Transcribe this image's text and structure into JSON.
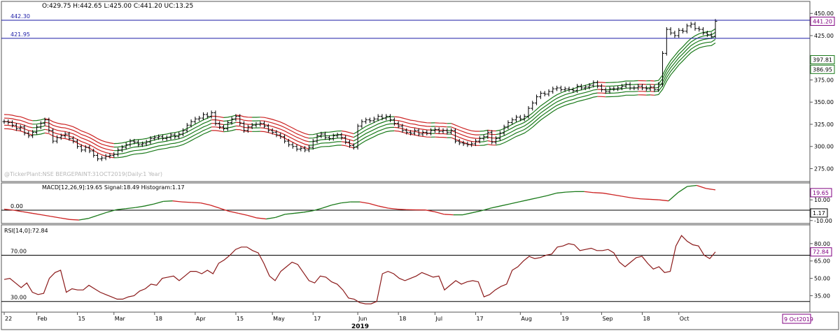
{
  "chart_data": [
    {
      "type": "ohlc",
      "panel": "price",
      "header": "O:429.75  H:442.65  L:425.00  C:441.20  UC:13.25",
      "watermark": "@TickerPlant:NSE BERGEPAINT:31OCT2019(Daily:1 Year)",
      "ylim": [
        262,
        462
      ],
      "ticks": [
        450,
        425,
        400,
        375,
        350,
        325,
        300,
        275
      ],
      "ticks_fmt": [
        "450.00",
        "425.00",
        "400.00",
        "375.00",
        "350.00",
        "325.00",
        "300.00",
        "275.00"
      ],
      "hlines": [
        {
          "label": "442.30",
          "value": 442.3
        },
        {
          "label": "421.95",
          "value": 421.95
        }
      ],
      "last_price": {
        "label": "441.20",
        "value": 441.2
      },
      "ribbon_labels": [
        {
          "label": "397.81",
          "value": 397.81
        },
        {
          "label": "386.95",
          "value": 386.95
        }
      ],
      "closes": [
        328,
        327,
        324,
        320,
        322,
        315,
        312,
        316,
        322,
        326,
        330,
        318,
        306,
        310,
        312,
        314,
        309,
        306,
        300,
        296,
        299,
        295,
        290,
        286,
        287,
        289,
        290,
        291,
        296,
        299,
        302,
        306,
        305,
        302,
        303,
        305,
        309,
        310,
        311,
        309,
        310,
        313,
        311,
        314,
        318,
        324,
        328,
        331,
        332,
        336,
        334,
        338,
        326,
        322,
        320,
        327,
        331,
        334,
        326,
        318,
        322,
        324,
        325,
        326,
        323,
        318,
        316,
        313,
        311,
        306,
        302,
        300,
        297,
        298,
        296,
        299,
        306,
        312,
        314,
        310,
        309,
        312,
        313,
        310,
        305,
        301,
        299,
        323,
        328,
        330,
        329,
        331,
        334,
        332,
        334,
        330,
        326,
        323,
        318,
        316,
        315,
        318,
        314,
        316,
        315,
        318,
        319,
        317,
        318,
        316,
        318,
        306,
        304,
        303,
        302,
        303,
        306,
        309,
        311,
        316,
        305,
        309,
        315,
        322,
        327,
        330,
        333,
        331,
        334,
        343,
        349,
        356,
        360,
        359,
        362,
        365,
        366,
        364,
        365,
        364,
        363,
        368,
        366,
        367,
        369,
        372,
        368,
        364,
        362,
        365,
        365,
        366,
        368,
        370,
        366,
        366,
        368,
        366,
        365,
        367,
        364,
        370,
        405,
        432,
        428,
        425,
        431,
        430,
        436,
        438,
        433,
        432,
        428,
        426,
        424,
        441.2
      ],
      "month_ticks": [
        {
          "label": "22",
          "index": 0
        },
        {
          "label": "Feb",
          "index": 8
        },
        {
          "label": "15",
          "index": 18
        },
        {
          "label": "Mar",
          "index": 27
        },
        {
          "label": "18",
          "index": 37
        },
        {
          "label": "Apr",
          "index": 47
        },
        {
          "label": "15",
          "index": 57
        },
        {
          "label": "May",
          "index": 66
        },
        {
          "label": "17",
          "index": 76
        },
        {
          "label": "Jun",
          "index": 87
        },
        {
          "label": "18",
          "index": 97
        },
        {
          "label": "Jul",
          "index": 106
        },
        {
          "label": "17",
          "index": 116
        },
        {
          "label": "Aug",
          "index": 127
        },
        {
          "label": "19",
          "index": 137
        },
        {
          "label": "Sep",
          "index": 147
        },
        {
          "label": "18",
          "index": 157
        },
        {
          "label": "Oct",
          "index": 166
        }
      ],
      "year_label": "2019",
      "date_label": "9 Oct2019"
    },
    {
      "type": "line",
      "panel": "macd",
      "header": "MACD[12,26,9]:19.65  Signal:18.49  Histogram:1.17",
      "ylim": [
        -11.5,
        25
      ],
      "ticks": [
        10,
        -10
      ],
      "ticks_fmt": [
        "10.00",
        "-10.00"
      ],
      "zero_label": "0.00",
      "value_label": "19.65",
      "hist_label": "1.17",
      "values": [
        1,
        0,
        -1.5,
        -3,
        -4.5,
        -6,
        -7.5,
        -9,
        -9.5,
        -8,
        -5,
        -2,
        0.5,
        1.5,
        2.5,
        4,
        6,
        8.5,
        9,
        8,
        7.5,
        7,
        5,
        2,
        -1,
        -3,
        -5,
        -7.5,
        -8.5,
        -7,
        -4,
        -3,
        -2,
        -0.5,
        2,
        5,
        7,
        8,
        8,
        6.5,
        4,
        2,
        1,
        0.5,
        0.3,
        0.2,
        -1.5,
        -4,
        -4.5,
        -4.5,
        -2.5,
        -0.5,
        2,
        4,
        6,
        8,
        10,
        12,
        14,
        16.5,
        17.5,
        18,
        18,
        17,
        16.5,
        15,
        13.5,
        12,
        11,
        10.5,
        10,
        9,
        17,
        23,
        24,
        21,
        19.65
      ],
      "ribbon_note": "line coloured red when falling, green when rising"
    },
    {
      "type": "line",
      "panel": "rsi",
      "header": "RSI[14,0]:72.84",
      "ylim": [
        22,
        95
      ],
      "ticks": [
        80,
        65,
        50,
        35
      ],
      "ticks_fmt": [
        "80.00",
        "65.00",
        "50.00",
        "35.00"
      ],
      "levels": [
        {
          "label": "70.00",
          "value": 70
        },
        {
          "label": "30.00",
          "value": 30
        }
      ],
      "value_label": "72.84",
      "values": [
        49,
        50,
        46,
        42,
        46,
        38,
        36,
        37,
        50,
        55,
        57,
        38,
        41,
        40,
        40,
        44,
        41,
        38,
        36,
        34,
        32,
        32,
        34,
        35,
        39,
        41,
        45,
        44,
        50,
        51,
        52,
        48,
        52,
        56,
        56,
        54,
        57,
        54,
        63,
        66,
        70,
        75,
        77,
        77,
        74,
        72,
        63,
        52,
        48,
        56,
        60,
        64,
        62,
        55,
        48,
        46,
        52,
        51,
        47,
        45,
        40,
        33,
        32,
        29,
        28,
        28,
        30,
        54,
        56,
        54,
        50,
        48,
        50,
        52,
        55,
        53,
        51,
        52,
        40,
        44,
        48,
        45,
        47,
        48,
        47,
        34,
        36,
        40,
        43,
        45,
        57,
        60,
        65,
        69,
        67,
        68,
        70,
        71,
        77,
        78,
        80,
        79,
        74,
        75,
        76,
        74,
        74,
        75,
        72,
        64,
        60,
        64,
        68,
        69,
        63,
        58,
        60,
        55,
        56,
        78,
        87,
        82,
        79,
        78,
        70,
        67,
        72.84
      ],
      "x_end_index": 176
    }
  ]
}
